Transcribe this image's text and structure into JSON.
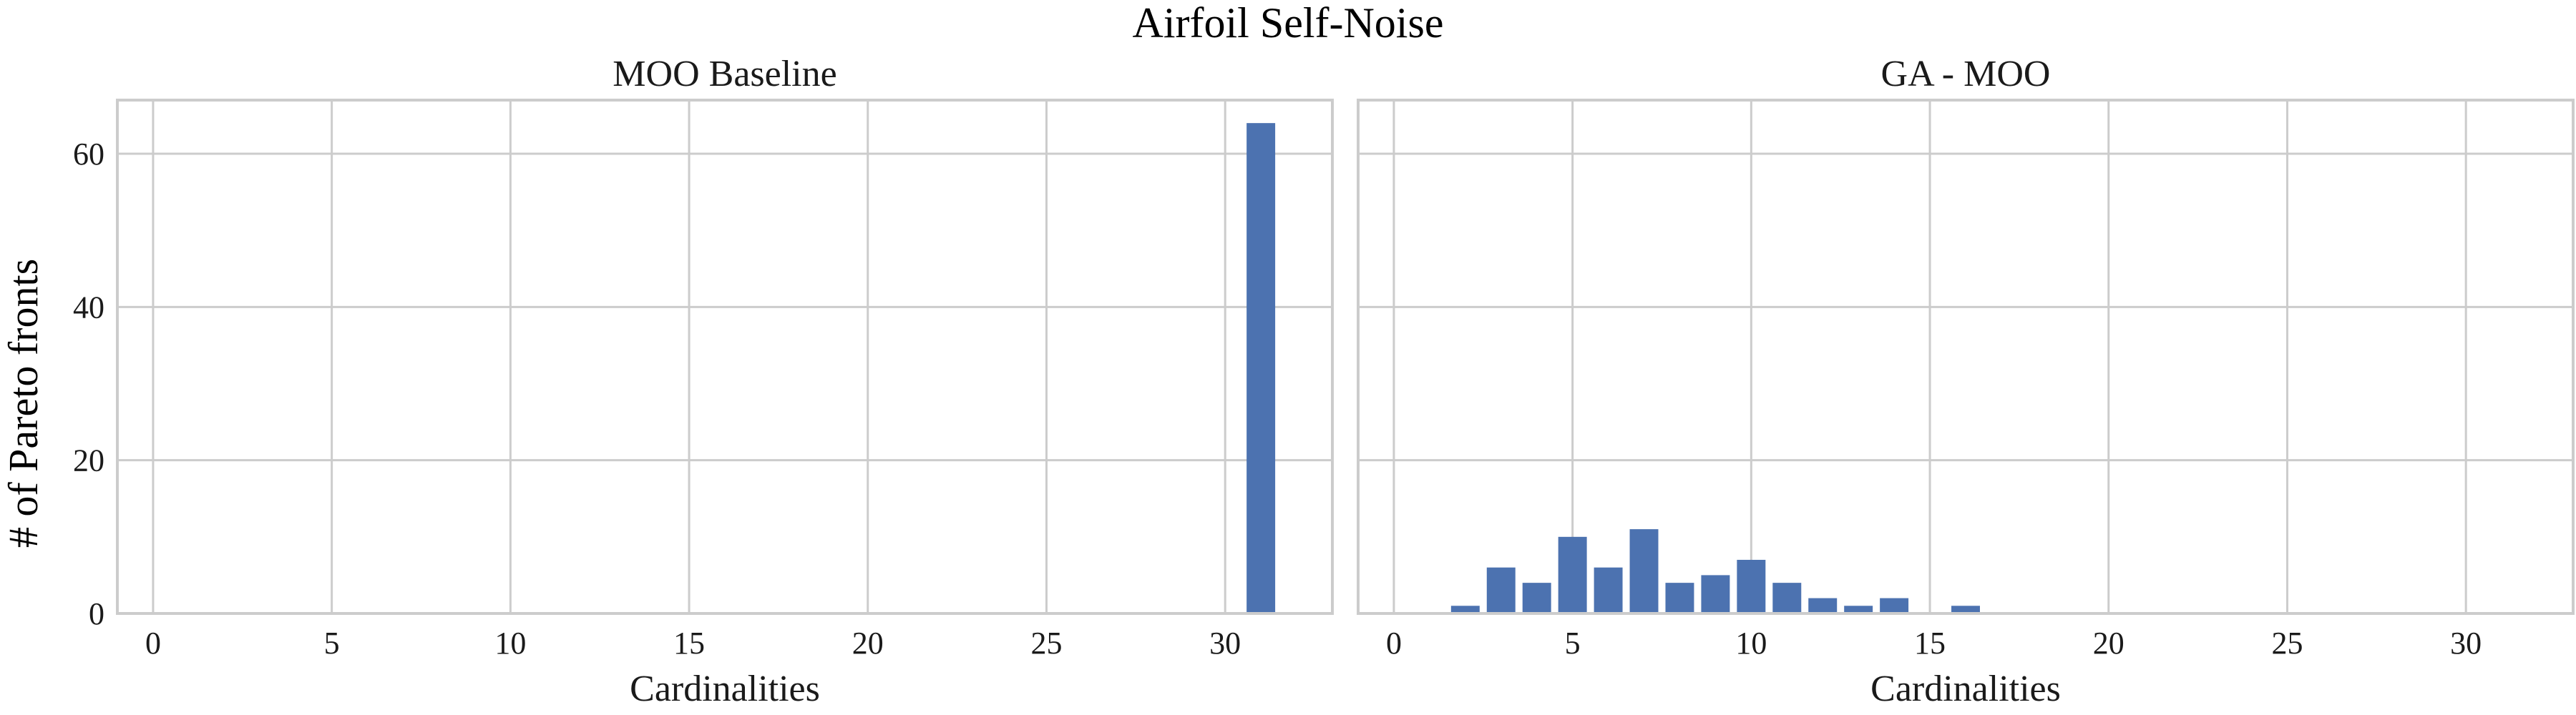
{
  "figure": {
    "title": "Airfoil Self-Noise",
    "ylabel": "# of Pareto fronts"
  },
  "colors": {
    "bar": "#4c72b0",
    "grid": "#cccccc",
    "axes_edge": "#cccccc",
    "text": "#1a1a1a"
  },
  "chart_data": [
    {
      "type": "bar",
      "title": "MOO Baseline",
      "xlabel": "Cardinalities",
      "ylabel": "# of Pareto fronts",
      "xlim": [
        -1,
        33
      ],
      "ylim": [
        0,
        67
      ],
      "xticks": [
        0,
        5,
        10,
        15,
        20,
        25,
        30
      ],
      "yticks": [
        0,
        20,
        40,
        60
      ],
      "grid": true,
      "x": [
        31
      ],
      "values": [
        64
      ]
    },
    {
      "type": "bar",
      "title": "GA - MOO",
      "xlabel": "Cardinalities",
      "ylabel": "",
      "xlim": [
        -1,
        33
      ],
      "ylim": [
        0,
        67
      ],
      "xticks": [
        0,
        5,
        10,
        15,
        20,
        25,
        30
      ],
      "yticks": [
        0,
        20,
        40,
        60
      ],
      "grid": true,
      "x": [
        2,
        3,
        4,
        5,
        6,
        7,
        8,
        9,
        10,
        11,
        12,
        13,
        14,
        16
      ],
      "values": [
        1,
        6,
        4,
        10,
        6,
        11,
        4,
        5,
        7,
        4,
        2,
        1,
        2,
        1
      ]
    }
  ]
}
